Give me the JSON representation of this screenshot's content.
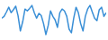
{
  "chart_data": {
    "type": "line",
    "values": [
      55,
      60,
      72,
      85,
      70,
      78,
      88,
      62,
      20,
      45,
      80,
      75,
      82,
      90,
      70,
      55,
      68,
      62,
      40,
      10,
      35,
      75,
      60,
      50,
      30,
      70,
      80,
      75,
      60,
      25,
      15,
      55,
      85,
      70,
      40,
      20,
      60,
      80,
      90,
      72,
      55,
      48,
      78,
      85,
      60,
      70
    ],
    "color": "#3a8fd6",
    "ylim": [
      0,
      100
    ],
    "tick_labels": false
  }
}
